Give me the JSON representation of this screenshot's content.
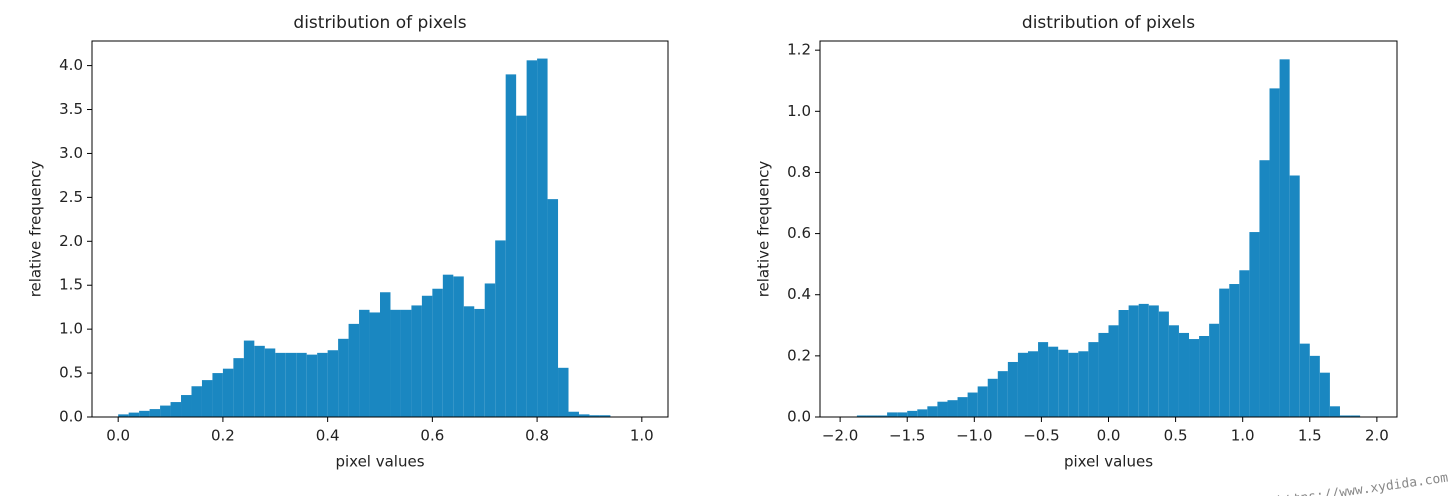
{
  "chart_data": [
    {
      "type": "histogram",
      "title": "distribution of pixels",
      "x_label": "pixel values",
      "y_label": "relative frequency",
      "color": "#1a87c1",
      "grid": false,
      "bins": [
        0,
        0.02,
        0.04,
        0.06,
        0.08,
        0.1,
        0.12,
        0.14,
        0.16,
        0.18,
        0.2,
        0.22,
        0.24,
        0.26,
        0.28,
        0.3,
        0.32,
        0.34,
        0.36,
        0.38,
        0.4,
        0.42,
        0.44,
        0.46,
        0.48,
        0.5,
        0.52,
        0.54,
        0.56,
        0.58,
        0.6,
        0.62,
        0.64,
        0.66,
        0.68,
        0.7,
        0.72,
        0.74,
        0.76,
        0.78,
        0.8,
        0.82,
        0.84,
        0.86,
        0.88,
        0.9,
        0.92,
        0.94,
        0.96,
        0.98,
        1.0
      ],
      "values": [
        0.03,
        0.05,
        0.07,
        0.09,
        0.13,
        0.17,
        0.25,
        0.35,
        0.42,
        0.5,
        0.55,
        0.67,
        0.87,
        0.81,
        0.78,
        0.73,
        0.73,
        0.73,
        0.71,
        0.73,
        0.76,
        0.89,
        1.06,
        1.22,
        1.19,
        1.42,
        1.22,
        1.22,
        1.27,
        1.38,
        1.46,
        1.62,
        1.6,
        1.26,
        1.23,
        1.52,
        2.01,
        3.9,
        3.43,
        4.06,
        4.08,
        2.48,
        0.56,
        0.06,
        0.03,
        0.02,
        0.02,
        0,
        0,
        0
      ],
      "xlim": [
        -0.05,
        1.05
      ],
      "ylim": [
        0,
        4.28
      ],
      "xticks": [
        {
          "value": 0,
          "label": "0.0"
        },
        {
          "value": 0.2,
          "label": "0.2"
        },
        {
          "value": 0.4,
          "label": "0.4"
        },
        {
          "value": 0.6,
          "label": "0.6"
        },
        {
          "value": 0.8,
          "label": "0.8"
        },
        {
          "value": 1,
          "label": "1.0"
        }
      ],
      "yticks": [
        {
          "value": 0,
          "label": "0.0"
        },
        {
          "value": 0.5,
          "label": "0.5"
        },
        {
          "value": 1,
          "label": "1.0"
        },
        {
          "value": 1.5,
          "label": "1.5"
        },
        {
          "value": 2,
          "label": "2.0"
        },
        {
          "value": 2.5,
          "label": "2.5"
        },
        {
          "value": 3,
          "label": "3.0"
        },
        {
          "value": 3.5,
          "label": "3.5"
        },
        {
          "value": 4,
          "label": "4.0"
        }
      ]
    },
    {
      "type": "histogram",
      "title": "distribution of pixels",
      "x_label": "pixel values",
      "y_label": "relative frequency",
      "color": "#1a87c1",
      "grid": false,
      "bins": [
        -1.875,
        -1.8,
        -1.725,
        -1.65,
        -1.575,
        -1.5,
        -1.425,
        -1.35,
        -1.275,
        -1.2,
        -1.125,
        -1.05,
        -0.975,
        -0.9,
        -0.825,
        -0.75,
        -0.675,
        -0.6,
        -0.525,
        -0.45,
        -0.375,
        -0.3,
        -0.225,
        -0.15,
        -0.075,
        0,
        0.075,
        0.15,
        0.225,
        0.3,
        0.375,
        0.45,
        0.525,
        0.6,
        0.675,
        0.75,
        0.825,
        0.9,
        0.975,
        1.05,
        1.125,
        1.2,
        1.275,
        1.35,
        1.425,
        1.5,
        1.575,
        1.65,
        1.725,
        1.8,
        1.875
      ],
      "values": [
        0.005,
        0.005,
        0.005,
        0.015,
        0.015,
        0.02,
        0.025,
        0.035,
        0.05,
        0.055,
        0.065,
        0.08,
        0.1,
        0.125,
        0.15,
        0.18,
        0.21,
        0.215,
        0.245,
        0.23,
        0.22,
        0.21,
        0.215,
        0.245,
        0.275,
        0.3,
        0.35,
        0.365,
        0.37,
        0.365,
        0.345,
        0.3,
        0.275,
        0.255,
        0.265,
        0.305,
        0.42,
        0.435,
        0.48,
        0.605,
        0.84,
        1.075,
        1.17,
        0.79,
        0.24,
        0.2,
        0.145,
        0.035,
        0.005,
        0.005
      ],
      "xlim": [
        -2.15,
        2.15
      ],
      "ylim": [
        0,
        1.23
      ],
      "xticks": [
        {
          "value": -2,
          "label": "−2.0"
        },
        {
          "value": -1.5,
          "label": "−1.5"
        },
        {
          "value": -1,
          "label": "−1.0"
        },
        {
          "value": -0.5,
          "label": "−0.5"
        },
        {
          "value": 0,
          "label": "0.0"
        },
        {
          "value": 0.5,
          "label": "0.5"
        },
        {
          "value": 1,
          "label": "1.0"
        },
        {
          "value": 1.5,
          "label": "1.5"
        },
        {
          "value": 2,
          "label": "2.0"
        }
      ],
      "yticks": [
        {
          "value": 0,
          "label": "0.0"
        },
        {
          "value": 0.2,
          "label": "0.2"
        },
        {
          "value": 0.4,
          "label": "0.4"
        },
        {
          "value": 0.6,
          "label": "0.6"
        },
        {
          "value": 0.8,
          "label": "0.8"
        },
        {
          "value": 1,
          "label": "1.0"
        },
        {
          "value": 1.2,
          "label": "1.2"
        }
      ]
    }
  ],
  "watermark": "https://www.xydida.com"
}
